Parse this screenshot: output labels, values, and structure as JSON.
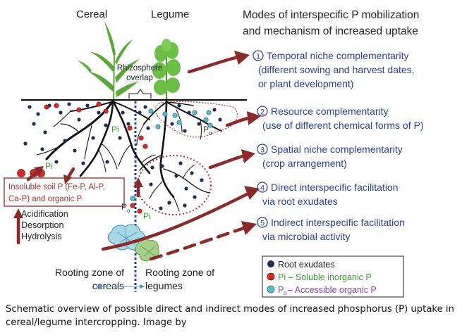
{
  "labels": {
    "cereal": "Cereal",
    "legume": "Legume",
    "rhizosphere_line1": "Rhizosphere",
    "rhizosphere_line2": "overlap",
    "modes_title_line1": "Modes of interspecific P mobilization",
    "modes_title_line2": "and mechanism of increased uptake",
    "insoluble_line1": "Insoluble soil P (Fe-P, Al-P,",
    "insoluble_line2": "Ca-P) and organic P",
    "process_1": "Acidification",
    "process_2": "Desorption",
    "process_3": "Hydrolysis",
    "pi": "Pi",
    "po_p": "P",
    "po_sub": "o",
    "rooting_cereals_line1": "Rooting zone of",
    "rooting_cereals_line2": "cereals",
    "rooting_legumes_line1": "Rooting zone of",
    "rooting_legumes_line2": "legumes"
  },
  "modes": [
    {
      "number": "1",
      "line1": "Temporal niche complementarity",
      "line2": "(different sowing and harvest dates,",
      "line3": "or plant development)"
    },
    {
      "number": "2",
      "line1": "Resource complementarity",
      "line2": "(use of different chemical forms of P)"
    },
    {
      "number": "3",
      "line1": "Spatial niche complementarity",
      "line2": "(crop arrangement)"
    },
    {
      "number": "4",
      "line1": "Direct interspecific facilitation",
      "line2": "via root exudates"
    },
    {
      "number": "5",
      "line1": "Indirect interspecific facilitation",
      "line2": "via microbial activity"
    }
  ],
  "legend": {
    "root_exudates": "Root exudates",
    "pi_soluble": "Pi – Soluble inorganic P",
    "po_prefix": "P",
    "po_sub": "o",
    "po_accessible": "– Accessible organic P"
  },
  "caption": "Schematic overview of possible direct and indirect modes of increased phosphorus (P) uptake in cereal/legume intercropping. Image by",
  "colors": {
    "arrow": "#8b2a2a",
    "mode_text": "#2e3f8f",
    "root_exudate": "#1f2d55",
    "pi": "#d42a27",
    "po": "#5bbcc8",
    "plant": "#5aa83a",
    "pi_label": "#3b9a2f"
  }
}
